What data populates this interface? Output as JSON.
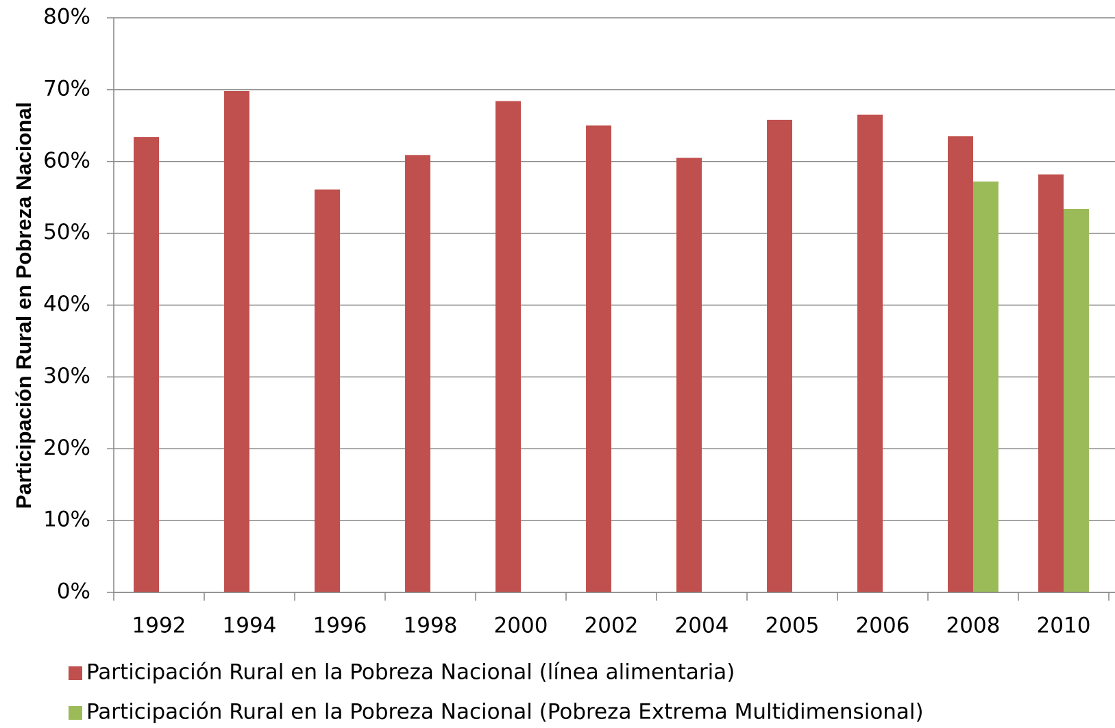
{
  "chart_data": {
    "type": "bar",
    "ylabel": "Participación Rural en Pobreza Nacional",
    "categories": [
      "1992",
      "1994",
      "1996",
      "1998",
      "2000",
      "2002",
      "2004",
      "2005",
      "2006",
      "2008",
      "2010"
    ],
    "series": [
      {
        "name": "Participación Rural en la Pobreza Nacional (línea alimentaria)",
        "color": "#c0504d",
        "values": [
          63.4,
          69.8,
          56.1,
          60.9,
          68.4,
          65.0,
          60.5,
          65.8,
          66.5,
          63.5,
          58.2
        ]
      },
      {
        "name": "Participación Rural en la Pobreza Nacional (Pobreza Extrema Multidimensional)",
        "color": "#9bbb59",
        "values": [
          null,
          null,
          null,
          null,
          null,
          null,
          null,
          null,
          null,
          57.2,
          53.4
        ]
      }
    ],
    "ylim": [
      0,
      80
    ],
    "yticks": [
      {
        "value": 0,
        "label": "0%"
      },
      {
        "value": 10,
        "label": "10%"
      },
      {
        "value": 20,
        "label": "20%"
      },
      {
        "value": 30,
        "label": "30%"
      },
      {
        "value": 40,
        "label": "40%"
      },
      {
        "value": 50,
        "label": "50%"
      },
      {
        "value": 60,
        "label": "60%"
      },
      {
        "value": 70,
        "label": "70%"
      },
      {
        "value": 80,
        "label": "80%"
      }
    ],
    "grid": true,
    "legend": "bottom"
  }
}
